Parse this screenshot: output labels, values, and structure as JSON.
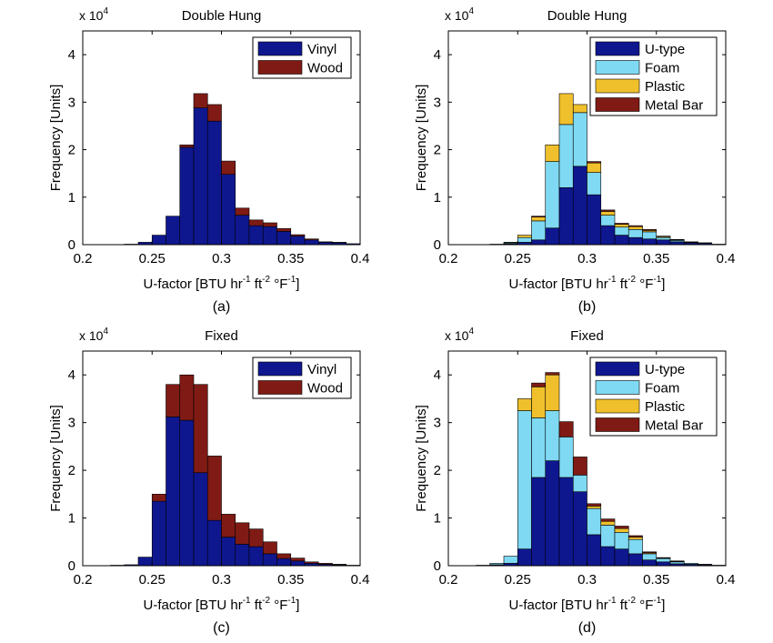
{
  "chart_data": [
    {
      "panel_label": "(a)",
      "type": "bar",
      "stacked": true,
      "title": "Double Hung",
      "xlabel": "U-factor [BTU hr-1 ft-2 °F-1]",
      "ylabel": "Frequency [Units]",
      "y_multiplier_label": "x 10",
      "y_multiplier_exponent": "4",
      "xlim": [
        0.2,
        0.4
      ],
      "ylim": [
        0,
        4.5
      ],
      "xticks": [
        "0.2",
        "0.25",
        "0.3",
        "0.35",
        "0.4"
      ],
      "yticks": [
        "0",
        "1",
        "2",
        "3",
        "4"
      ],
      "legend": "top-right",
      "bin_width": 0.01,
      "x": [
        0.235,
        0.245,
        0.255,
        0.265,
        0.275,
        0.285,
        0.295,
        0.305,
        0.315,
        0.325,
        0.335,
        0.345,
        0.355,
        0.365,
        0.375,
        0.385,
        0.395
      ],
      "series": [
        {
          "name": "Vinyl",
          "color": "#0f178f",
          "values": [
            0.01,
            0.05,
            0.2,
            0.6,
            2.05,
            2.88,
            2.6,
            1.48,
            0.62,
            0.4,
            0.38,
            0.28,
            0.18,
            0.1,
            0.05,
            0.04,
            0.02
          ]
        },
        {
          "name": "Wood",
          "color": "#7f1b14",
          "values": [
            0,
            0,
            0,
            0,
            0.05,
            0.3,
            0.35,
            0.28,
            0.15,
            0.12,
            0.08,
            0.06,
            0.03,
            0.02,
            0.01,
            0.01,
            0
          ]
        }
      ]
    },
    {
      "panel_label": "(b)",
      "type": "bar",
      "stacked": true,
      "title": "Double Hung",
      "xlabel": "U-factor [BTU hr-1 ft-2 °F-1]",
      "ylabel": "Frequency [Units]",
      "y_multiplier_label": "x 10",
      "y_multiplier_exponent": "4",
      "xlim": [
        0.2,
        0.4
      ],
      "ylim": [
        0,
        4.5
      ],
      "xticks": [
        "0.2",
        "0.25",
        "0.3",
        "0.35",
        "0.4"
      ],
      "yticks": [
        "0",
        "1",
        "2",
        "3",
        "4"
      ],
      "legend": "top-right",
      "bin_width": 0.01,
      "x": [
        0.235,
        0.245,
        0.255,
        0.265,
        0.275,
        0.285,
        0.295,
        0.305,
        0.315,
        0.325,
        0.335,
        0.345,
        0.355,
        0.365,
        0.375,
        0.385,
        0.395
      ],
      "series": [
        {
          "name": "U-type",
          "color": "#0f178f",
          "values": [
            0.01,
            0.02,
            0.05,
            0.1,
            0.35,
            1.2,
            1.65,
            1.05,
            0.4,
            0.2,
            0.15,
            0.12,
            0.1,
            0.06,
            0.04,
            0.03,
            0.01
          ]
        },
        {
          "name": "Foam",
          "color": "#7fd9f2",
          "values": [
            0,
            0.02,
            0.1,
            0.4,
            1.4,
            1.33,
            1.13,
            0.47,
            0.22,
            0.17,
            0.17,
            0.15,
            0.05,
            0.03,
            0.01,
            0.01,
            0
          ]
        },
        {
          "name": "Plastic",
          "color": "#f0c02c",
          "values": [
            0,
            0.01,
            0.05,
            0.08,
            0.35,
            0.65,
            0.17,
            0.2,
            0.08,
            0.06,
            0.06,
            0.03,
            0.02,
            0.01,
            0.01,
            0,
            0
          ]
        },
        {
          "name": "Metal Bar",
          "color": "#7f1b14",
          "values": [
            0,
            0,
            0,
            0.02,
            0,
            0,
            0,
            0.03,
            0.03,
            0.02,
            0.02,
            0.02,
            0.01,
            0.01,
            0,
            0,
            0
          ]
        }
      ]
    },
    {
      "panel_label": "(c)",
      "type": "bar",
      "stacked": true,
      "title": "Fixed",
      "xlabel": "U-factor [BTU hr-1 ft-2 °F-1]",
      "ylabel": "Frequency [Units]",
      "y_multiplier_label": "x 10",
      "y_multiplier_exponent": "4",
      "xlim": [
        0.2,
        0.4
      ],
      "ylim": [
        0,
        4.5
      ],
      "xticks": [
        "0.2",
        "0.25",
        "0.3",
        "0.35",
        "0.4"
      ],
      "yticks": [
        "0",
        "1",
        "2",
        "3",
        "4"
      ],
      "legend": "top-right",
      "bin_width": 0.01,
      "x": [
        0.225,
        0.235,
        0.245,
        0.255,
        0.265,
        0.275,
        0.285,
        0.295,
        0.305,
        0.315,
        0.325,
        0.335,
        0.345,
        0.355,
        0.365,
        0.375,
        0.385,
        0.395
      ],
      "series": [
        {
          "name": "Vinyl",
          "color": "#0f178f",
          "values": [
            0.01,
            0.02,
            0.18,
            1.35,
            3.12,
            3.05,
            1.95,
            0.95,
            0.6,
            0.45,
            0.4,
            0.25,
            0.15,
            0.1,
            0.05,
            0.03,
            0.02,
            0.01
          ]
        },
        {
          "name": "Wood",
          "color": "#7f1b14",
          "values": [
            0,
            0,
            0,
            0.15,
            0.68,
            0.95,
            1.85,
            1.35,
            0.48,
            0.45,
            0.37,
            0.25,
            0.1,
            0.06,
            0.03,
            0.02,
            0.01,
            0
          ]
        }
      ]
    },
    {
      "panel_label": "(d)",
      "type": "bar",
      "stacked": true,
      "title": "Fixed",
      "xlabel": "U-factor [BTU hr-1 ft-2 °F-1]",
      "ylabel": "Frequency [Units]",
      "y_multiplier_label": "x 10",
      "y_multiplier_exponent": "4",
      "xlim": [
        0.2,
        0.4
      ],
      "ylim": [
        0,
        4.5
      ],
      "xticks": [
        "0.2",
        "0.25",
        "0.3",
        "0.35",
        "0.4"
      ],
      "yticks": [
        "0",
        "1",
        "2",
        "3",
        "4"
      ],
      "legend": "top-right",
      "bin_width": 0.01,
      "x": [
        0.225,
        0.235,
        0.245,
        0.255,
        0.265,
        0.275,
        0.285,
        0.295,
        0.305,
        0.315,
        0.325,
        0.335,
        0.345,
        0.355,
        0.365,
        0.375,
        0.385,
        0.395
      ],
      "series": [
        {
          "name": "U-type",
          "color": "#0f178f",
          "values": [
            0.01,
            0.02,
            0.05,
            0.35,
            1.85,
            2.2,
            1.85,
            1.55,
            0.65,
            0.4,
            0.35,
            0.25,
            0.12,
            0.08,
            0.04,
            0.03,
            0.02,
            0.01
          ]
        },
        {
          "name": "Foam",
          "color": "#7fd9f2",
          "values": [
            0,
            0.03,
            0.15,
            2.9,
            1.25,
            1.05,
            0.85,
            0.35,
            0.55,
            0.45,
            0.35,
            0.3,
            0.13,
            0.07,
            0.04,
            0.02,
            0.01,
            0
          ]
        },
        {
          "name": "Plastic",
          "color": "#f0c02c",
          "values": [
            0,
            0,
            0,
            0.25,
            0.65,
            0.75,
            0,
            0,
            0.05,
            0.08,
            0.08,
            0.05,
            0.02,
            0.01,
            0.01,
            0,
            0,
            0
          ]
        },
        {
          "name": "Metal Bar",
          "color": "#7f1b14",
          "values": [
            0,
            0,
            0,
            0,
            0.08,
            0.05,
            0.32,
            0.38,
            0.05,
            0.05,
            0.05,
            0.03,
            0.02,
            0.01,
            0.01,
            0,
            0,
            0
          ]
        }
      ]
    }
  ]
}
